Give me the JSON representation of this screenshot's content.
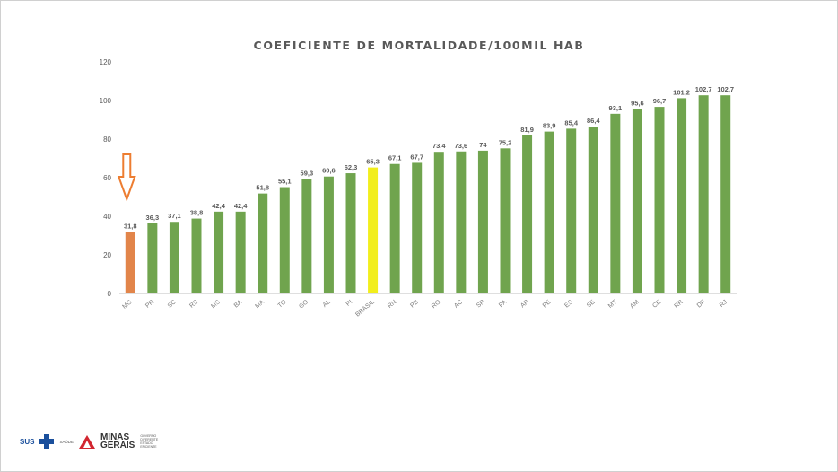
{
  "chart_data": {
    "type": "bar",
    "title": "COEFICIENTE DE MORTALIDADE/100MIL HAB",
    "xlabel": "",
    "ylabel": "",
    "ylim": [
      0,
      120
    ],
    "yticks": [
      0,
      20,
      40,
      60,
      80,
      100,
      120
    ],
    "grid": false,
    "categories": [
      "MG",
      "PR",
      "SC",
      "RS",
      "MS",
      "BA",
      "MA",
      "TO",
      "GO",
      "AL",
      "PI",
      "BRASIL",
      "RN",
      "PB",
      "RO",
      "AC",
      "SP",
      "PA",
      "AP",
      "PE",
      "ES",
      "SE",
      "MT",
      "AM",
      "CE",
      "RR",
      "DF",
      "RJ"
    ],
    "values": [
      31.8,
      36.3,
      37.1,
      38.8,
      42.4,
      42.4,
      51.8,
      55.1,
      59.3,
      60.6,
      62.3,
      65.3,
      67.1,
      67.7,
      73.4,
      73.6,
      74,
      75.2,
      81.9,
      83.9,
      85.4,
      86.4,
      93.1,
      95.6,
      96.7,
      101.2,
      102.7,
      102.7
    ],
    "value_labels": [
      "31,8",
      "36,3",
      "37,1",
      "38,8",
      "42,4",
      "42,4",
      "51,8",
      "55,1",
      "59,3",
      "60,6",
      "62,3",
      "65,3",
      "67,1",
      "67,7",
      "73,4",
      "73,6",
      "74",
      "75,2",
      "81,9",
      "83,9",
      "85,4",
      "86,4",
      "93,1",
      "95,6",
      "96,7",
      "101,2",
      "102,7",
      "102,7"
    ],
    "colors": {
      "default": "#70a44e",
      "highlight_MG": "#e2854a",
      "highlight_BRASIL": "#f2ee1c",
      "arrow": "#ed7d31"
    },
    "annotations": [
      {
        "type": "arrow",
        "target": "MG",
        "direction": "down"
      }
    ]
  },
  "footer": {
    "sus": "SUS",
    "saude": "SAÚDE",
    "mg_line1": "MINAS",
    "mg_line2": "GERAIS",
    "gov_line1": "GOVERNO",
    "gov_line2": "DIFERENTE",
    "gov_line3": "ESTADO",
    "gov_line4": "EFICIENTE"
  }
}
